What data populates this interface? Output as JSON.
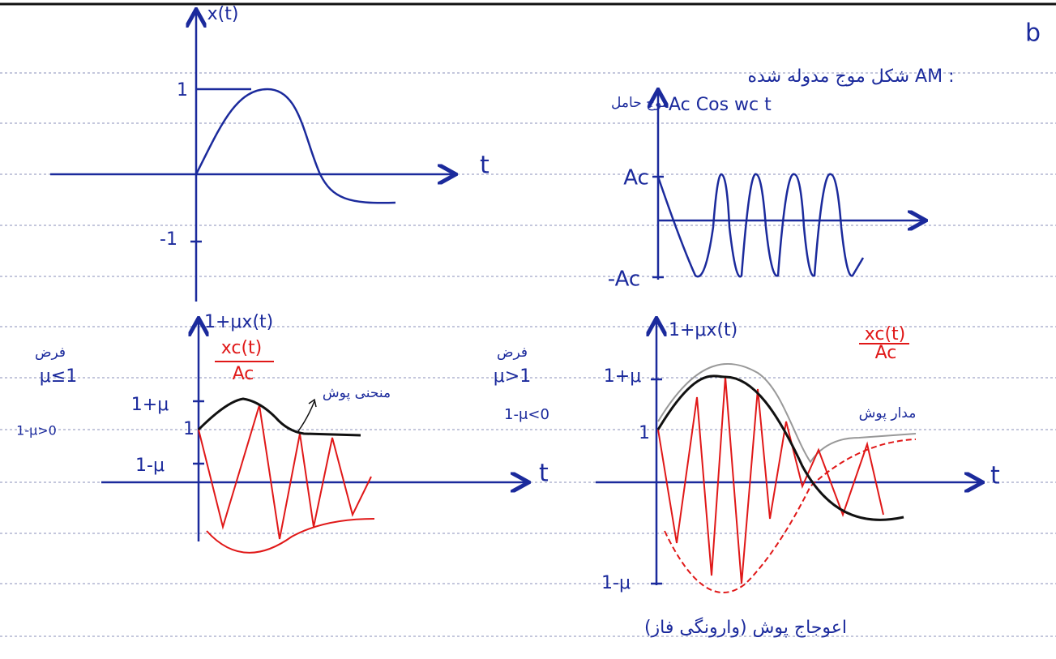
{
  "header": {
    "letter": "b",
    "title": "شکل موج مدوله شده AM :"
  },
  "panels": [
    {
      "y_label": "x(t)",
      "x_label": "t",
      "ticks": [
        "1",
        "-1"
      ]
    },
    {
      "note": "موج حامل",
      "y_label": "Ac Cos wc t",
      "ticks": [
        "Ac",
        "-Ac"
      ]
    },
    {
      "y_label": "1+μx(t)",
      "fraction": [
        "xc(t)",
        "Ac"
      ],
      "x_label": "t",
      "ticks": [
        "1+μ",
        "1",
        "1-μ"
      ],
      "annotation": "منحنی پوش",
      "assumption": [
        "فرض",
        "μ≤1",
        "1-μ>0"
      ]
    },
    {
      "y_label": "1+μx(t)",
      "fraction": [
        "xc(t)",
        "Ac"
      ],
      "x_label": "t",
      "ticks": [
        "1+μ",
        "1",
        "1-μ"
      ],
      "annotation": "مدار پوش",
      "assumption": [
        "فرض",
        "μ>1",
        "1-μ<0"
      ],
      "caption": "اعوجاج پوش (وارونگی فاز)"
    }
  ]
}
